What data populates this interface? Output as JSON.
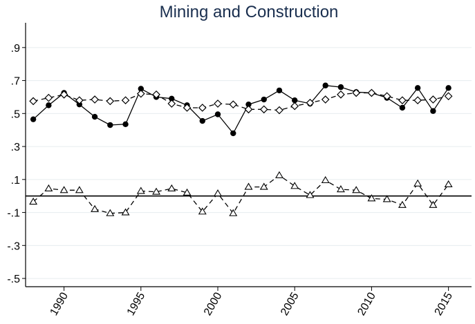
{
  "chart_data": {
    "type": "line",
    "title": "Mining and Construction",
    "xlabel": "",
    "ylabel": "",
    "xlim": [
      1987.5,
      2016.5
    ],
    "ylim": [
      -0.55,
      1.05
    ],
    "x_ticks": [
      "1990",
      "1995",
      "2000",
      "2005",
      "2010",
      "2015"
    ],
    "y_ticks": [
      ".9",
      ".7",
      ".5",
      ".3",
      ".1",
      "-.1",
      "-.3",
      "-.5"
    ],
    "grid": true,
    "reference_line_y": 0,
    "x": [
      1988,
      1989,
      1990,
      1991,
      1992,
      1993,
      1994,
      1995,
      1996,
      1997,
      1998,
      1999,
      2000,
      2001,
      2002,
      2003,
      2004,
      2005,
      2006,
      2007,
      2008,
      2009,
      2010,
      2011,
      2012,
      2013,
      2014,
      2015
    ],
    "series": [
      {
        "marker": "filled-circle",
        "line": "solid",
        "values": [
          0.465,
          0.55,
          0.625,
          0.555,
          0.48,
          0.43,
          0.435,
          0.65,
          0.6,
          0.59,
          0.55,
          0.455,
          0.495,
          0.38,
          0.555,
          0.585,
          0.64,
          0.58,
          0.56,
          0.67,
          0.66,
          0.63,
          0.625,
          0.595,
          0.535,
          0.655,
          0.515,
          0.655
        ]
      },
      {
        "marker": "hollow-diamond",
        "line": "dashed",
        "values": [
          0.575,
          0.595,
          0.615,
          0.58,
          0.585,
          0.575,
          0.58,
          0.62,
          0.615,
          0.56,
          0.535,
          0.535,
          0.56,
          0.555,
          0.525,
          0.525,
          0.52,
          0.545,
          0.565,
          0.585,
          0.615,
          0.625,
          0.625,
          0.605,
          0.58,
          0.58,
          0.585,
          0.605
        ]
      },
      {
        "marker": "hollow-triangle",
        "line": "dashed",
        "values": [
          -0.035,
          0.045,
          0.035,
          0.035,
          -0.08,
          -0.105,
          -0.1,
          0.03,
          0.025,
          0.045,
          0.02,
          -0.095,
          0.015,
          -0.105,
          0.055,
          0.055,
          0.125,
          0.06,
          0.005,
          0.095,
          0.04,
          0.035,
          -0.015,
          -0.02,
          -0.055,
          0.075,
          -0.055,
          0.07
        ]
      }
    ]
  }
}
